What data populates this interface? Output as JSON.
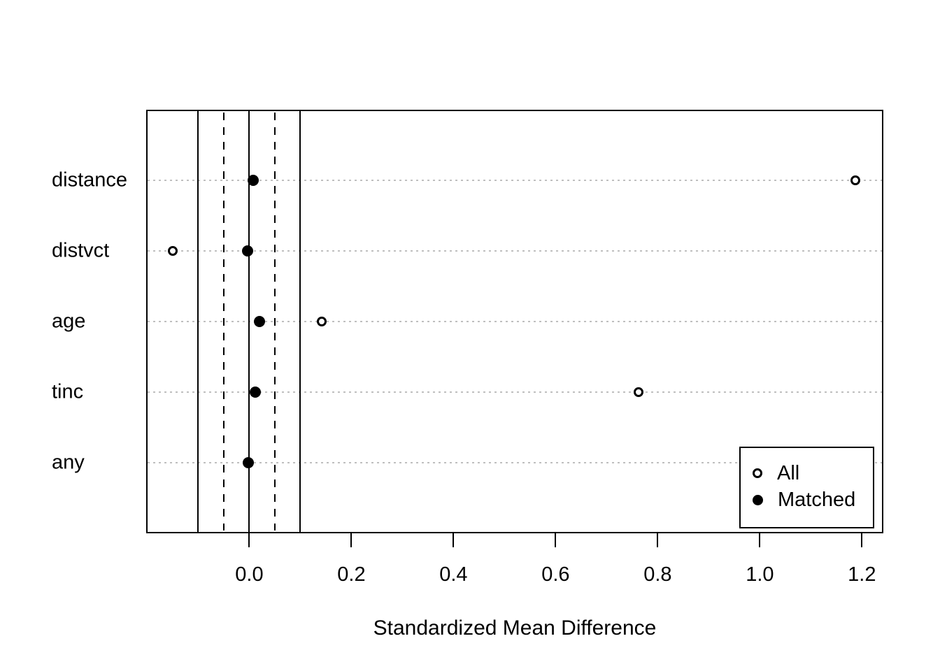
{
  "chart_data": {
    "type": "scatter",
    "title": "",
    "xlabel": "Standardized Mean Difference",
    "ylabel": "",
    "categories": [
      "distance",
      "distvct",
      "age",
      "tinc",
      "any"
    ],
    "series": [
      {
        "name": "All",
        "marker": "open-circle",
        "values": [
          1.187,
          -0.15,
          0.142,
          0.762,
          -0.002
        ]
      },
      {
        "name": "Matched",
        "marker": "filled-circle",
        "values": [
          0.008,
          -0.004,
          0.02,
          0.012,
          -0.002
        ]
      }
    ],
    "x_ticks": [
      {
        "value": 0.0,
        "label": "0.0"
      },
      {
        "value": 0.2,
        "label": "0.2"
      },
      {
        "value": 0.4,
        "label": "0.4"
      },
      {
        "value": 0.6,
        "label": "0.6"
      },
      {
        "value": 0.8,
        "label": "0.8"
      },
      {
        "value": 1.0,
        "label": "1.0"
      },
      {
        "value": 1.2,
        "label": "1.2"
      }
    ],
    "xlim": [
      -0.202,
      1.242
    ],
    "reference_lines": {
      "solid": [
        -0.1,
        0.0,
        0.1
      ],
      "dashed": [
        -0.05,
        0.05
      ]
    },
    "grid": "dotted-horizontal-per-category",
    "legend": {
      "position": "bottom-right",
      "entries": [
        {
          "marker": "open-circle",
          "label": "All"
        },
        {
          "marker": "filled-circle",
          "label": "Matched"
        }
      ]
    },
    "colors": {
      "foreground": "#000000",
      "background": "#ffffff",
      "gridline": "#bfbfbf"
    }
  }
}
